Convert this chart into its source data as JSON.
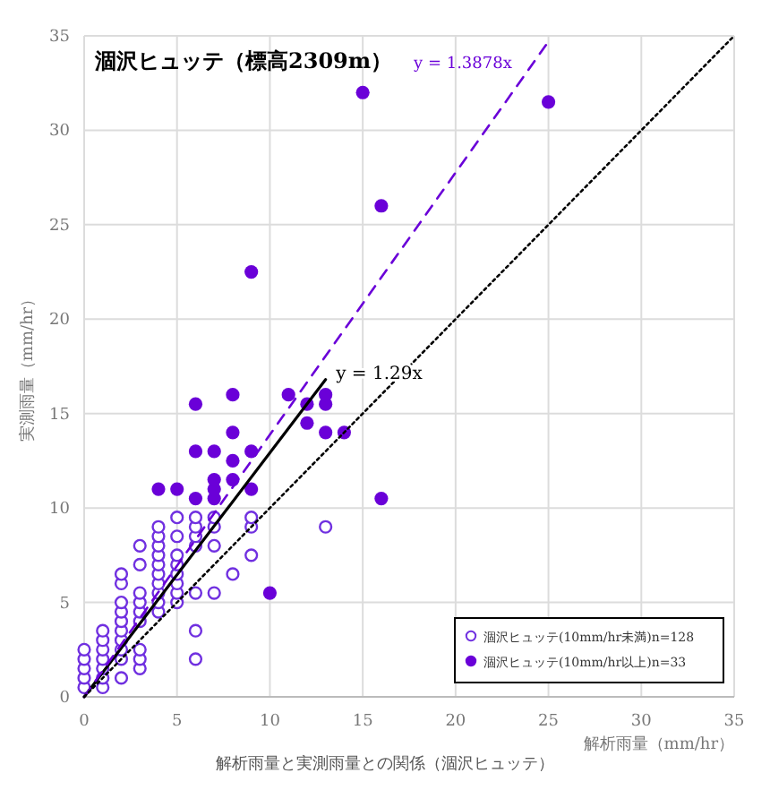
{
  "chart_data": {
    "type": "scatter",
    "title": "涸沢ヒュッテ（標高2309m）",
    "xlabel": "解析雨量（mm/hr）",
    "ylabel": "実測雨量（mm/hr）",
    "annotations": [
      "y = 1.3878x",
      {
        "text": "y = 1.29x",
        "x": 12.4,
        "y": 16
      },
      "解析雨量と実測雨量との関係（涸沢ヒュッテ）"
    ],
    "xlim": [
      0,
      35
    ],
    "ylim": [
      0,
      35
    ],
    "xticks": [
      0,
      5,
      10,
      15,
      20,
      25,
      30,
      35
    ],
    "yticks": [
      0,
      5,
      10,
      15,
      20,
      25,
      30,
      35
    ],
    "grid": true,
    "legend": "bottom right",
    "series": [
      {
        "name": "涸沢ヒュッテ(10mm/hr未満)n=128",
        "color": "#7030e0",
        "marker": "circle",
        "x": [
          0,
          0,
          0,
          0,
          0,
          1,
          1,
          1,
          1,
          1,
          1,
          1,
          2,
          2,
          2,
          2,
          2,
          2,
          2,
          2,
          2,
          2,
          3,
          3,
          3,
          3,
          3,
          3,
          3,
          3,
          3,
          4,
          4,
          4,
          4,
          4,
          4,
          4,
          4,
          4,
          4,
          5,
          5,
          5,
          5,
          5,
          5,
          5,
          5,
          6,
          6,
          6,
          6,
          6,
          6,
          6,
          7,
          7,
          7,
          7,
          8,
          9,
          9,
          9,
          13
        ],
        "values": [
          0.5,
          1,
          1.5,
          2,
          2.5,
          0.5,
          1,
          1.5,
          2,
          2.5,
          3,
          3.5,
          1,
          2,
          2.5,
          3,
          3.5,
          4,
          4.5,
          5,
          6,
          6.5,
          1.5,
          2,
          2.5,
          4,
          4.5,
          5,
          5.5,
          7,
          8,
          4.5,
          5,
          5.5,
          6,
          6.5,
          7,
          7.5,
          8,
          8.5,
          9,
          5,
          5.5,
          6,
          6.5,
          7,
          7.5,
          8.5,
          9.5,
          2,
          3.5,
          5.5,
          8,
          8.5,
          9,
          9.5,
          5.5,
          8,
          9,
          9.5,
          6.5,
          7.5,
          9,
          9.5,
          9
        ]
      },
      {
        "name": "涸沢ヒュッテ(10mm/hr以上)n=33",
        "color": "#6a00d8",
        "marker": "circle",
        "x": [
          4,
          5,
          6,
          6,
          6,
          7,
          7,
          7,
          7,
          8,
          8,
          8,
          8,
          9,
          9,
          9,
          10,
          11,
          12,
          12,
          13,
          13,
          13,
          14,
          15,
          16,
          16,
          25
        ],
        "values": [
          11,
          11,
          10.5,
          13,
          15.5,
          10.5,
          11,
          11.5,
          13,
          11.5,
          12.5,
          14,
          16,
          11,
          13,
          22.5,
          5.5,
          16,
          14.5,
          15.5,
          14,
          15.5,
          16,
          14,
          32,
          26,
          10.5,
          31.5
        ]
      },
      {
        "type": "line",
        "color": "#000000",
        "line_style": "solid",
        "x": [
          0,
          13
        ],
        "values": [
          0,
          16.8
        ]
      },
      {
        "type": "line",
        "color": "#6a00d8",
        "line_style": "dashed",
        "x": [
          0,
          25
        ],
        "values": [
          0,
          34.7
        ]
      },
      {
        "type": "line",
        "color": "#000000",
        "line_style": "dotted",
        "x": [
          0,
          35
        ],
        "values": [
          0,
          35
        ]
      }
    ]
  }
}
